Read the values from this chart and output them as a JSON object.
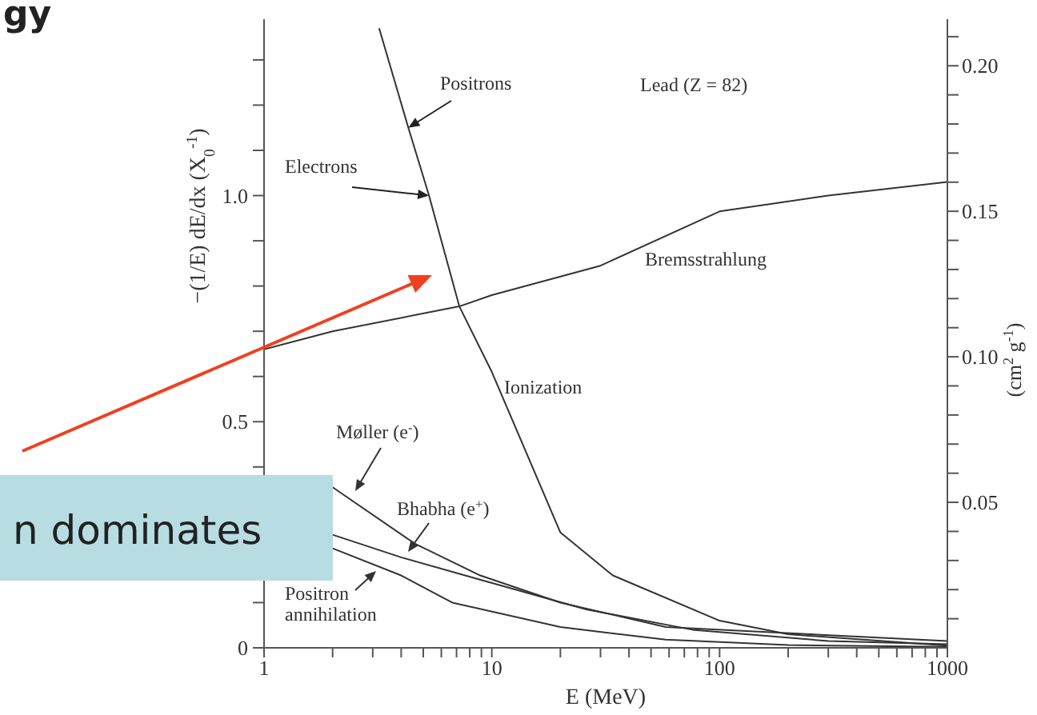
{
  "chart_data": {
    "type": "line",
    "xlabel": "E (MeV)",
    "ylabel": "−(1/E) dE/dx (X$_{0}$$^{-1}$)",
    "y2label": "(cm$^{2}$ g$^{-1}$)",
    "log": "x",
    "marker": "none",
    "line_style": "solid",
    "xlim": [
      1,
      1000
    ],
    "ylim": [
      0,
      1.39
    ],
    "y2lim": [
      0,
      0.216
    ],
    "xticks": [
      1,
      {
        "value": 2,
        "label": null
      },
      {
        "value": 3,
        "label": null
      },
      {
        "value": 4,
        "label": null
      },
      {
        "value": 5,
        "label": null
      },
      {
        "value": 6,
        "label": null
      },
      {
        "value": 7,
        "label": null
      },
      {
        "value": 8,
        "label": null
      },
      {
        "value": 9,
        "label": null
      },
      10,
      {
        "value": 20,
        "label": null
      },
      {
        "value": 30,
        "label": null
      },
      {
        "value": 40,
        "label": null
      },
      {
        "value": 50,
        "label": null
      },
      {
        "value": 60,
        "label": null
      },
      {
        "value": 70,
        "label": null
      },
      {
        "value": 80,
        "label": null
      },
      {
        "value": 90,
        "label": null
      },
      100,
      {
        "value": 200,
        "label": null
      },
      {
        "value": 300,
        "label": null
      },
      {
        "value": 400,
        "label": null
      },
      {
        "value": 500,
        "label": null
      },
      {
        "value": 600,
        "label": null
      },
      {
        "value": 700,
        "label": null
      },
      {
        "value": 800,
        "label": null
      },
      {
        "value": 900,
        "label": null
      },
      1000
    ],
    "yticks": [
      0,
      {
        "value": 0.1,
        "label": null
      },
      {
        "value": 0.2,
        "label": null
      },
      {
        "value": 0.3,
        "label": null
      },
      {
        "value": 0.4,
        "label": null
      },
      {
        "value": 0.5,
        "label": "0.5"
      },
      {
        "value": 0.6,
        "label": null
      },
      {
        "value": 0.7,
        "label": null
      },
      {
        "value": 0.8,
        "label": null
      },
      {
        "value": 0.9,
        "label": null
      },
      {
        "value": 1.0,
        "label": "1.0"
      },
      {
        "value": 1.1,
        "label": null
      },
      {
        "value": 1.2,
        "label": null
      },
      {
        "value": 1.3,
        "label": null
      }
    ],
    "y2ticks": [
      {
        "value": 0.01,
        "label": null
      },
      {
        "value": 0.02,
        "label": null
      },
      {
        "value": 0.03,
        "label": null
      },
      {
        "value": 0.04,
        "label": null
      },
      {
        "value": 0.05,
        "label": "0.05"
      },
      {
        "value": 0.06,
        "label": null
      },
      {
        "value": 0.07,
        "label": null
      },
      {
        "value": 0.08,
        "label": null
      },
      {
        "value": 0.09,
        "label": null
      },
      {
        "value": 0.1,
        "label": "0.10"
      },
      {
        "value": 0.11,
        "label": null
      },
      {
        "value": 0.12,
        "label": null
      },
      {
        "value": 0.13,
        "label": null
      },
      {
        "value": 0.14,
        "label": null
      },
      {
        "value": 0.15,
        "label": "0.15"
      },
      {
        "value": 0.16,
        "label": null
      },
      {
        "value": 0.17,
        "label": null
      },
      {
        "value": 0.18,
        "label": null
      },
      {
        "value": 0.19,
        "label": null
      },
      {
        "value": 0.2,
        "label": "0.20"
      },
      {
        "value": 0.21,
        "label": null
      }
    ],
    "series": [
      {
        "name": "Ionization",
        "color": "#333333",
        "x": [
          3.2,
          4.3,
          5.3,
          7.2,
          10,
          20,
          34,
          100,
          200,
          1000
        ],
        "values": [
          1.37,
          1.15,
          1.0,
          0.755,
          0.61,
          0.255,
          0.16,
          0.06,
          0.03,
          0.005
        ]
      },
      {
        "name": "Bremsstrahlung",
        "color": "#333333",
        "x": [
          1,
          2,
          7.2,
          10,
          30,
          100,
          300,
          1000
        ],
        "values": [
          0.66,
          0.7,
          0.755,
          0.78,
          0.845,
          0.965,
          1.0,
          1.03
        ]
      },
      {
        "name": "Møller (e$^{-}$)",
        "color": "#333333",
        "x": [
          2,
          4.6,
          8.9,
          20,
          58,
          160,
          1000
        ],
        "values": [
          0.355,
          0.23,
          0.16,
          0.1,
          0.046,
          0.035,
          0.015
        ]
      },
      {
        "name": "Bhabha (e$^{+}$)",
        "color": "#333333",
        "x": [
          2,
          4,
          9,
          26,
          76,
          300,
          1000
        ],
        "values": [
          0.25,
          0.2,
          0.15,
          0.085,
          0.04,
          0.015,
          0.008
        ]
      },
      {
        "name": "Positron annihilation",
        "color": "#333333",
        "x": [
          2,
          4,
          6.7,
          20,
          58,
          200,
          1000
        ],
        "values": [
          0.22,
          0.16,
          0.1,
          0.046,
          0.018,
          0.006,
          0.002
        ]
      }
    ],
    "annotations": [
      "gy",
      "n dominates",
      "Lead (Z = 82)",
      {
        "text": "Positrons",
        "x": 4.3,
        "y": 1.15
      },
      {
        "text": "Electrons",
        "x": 5.3,
        "y": 1.0
      }
    ]
  }
}
